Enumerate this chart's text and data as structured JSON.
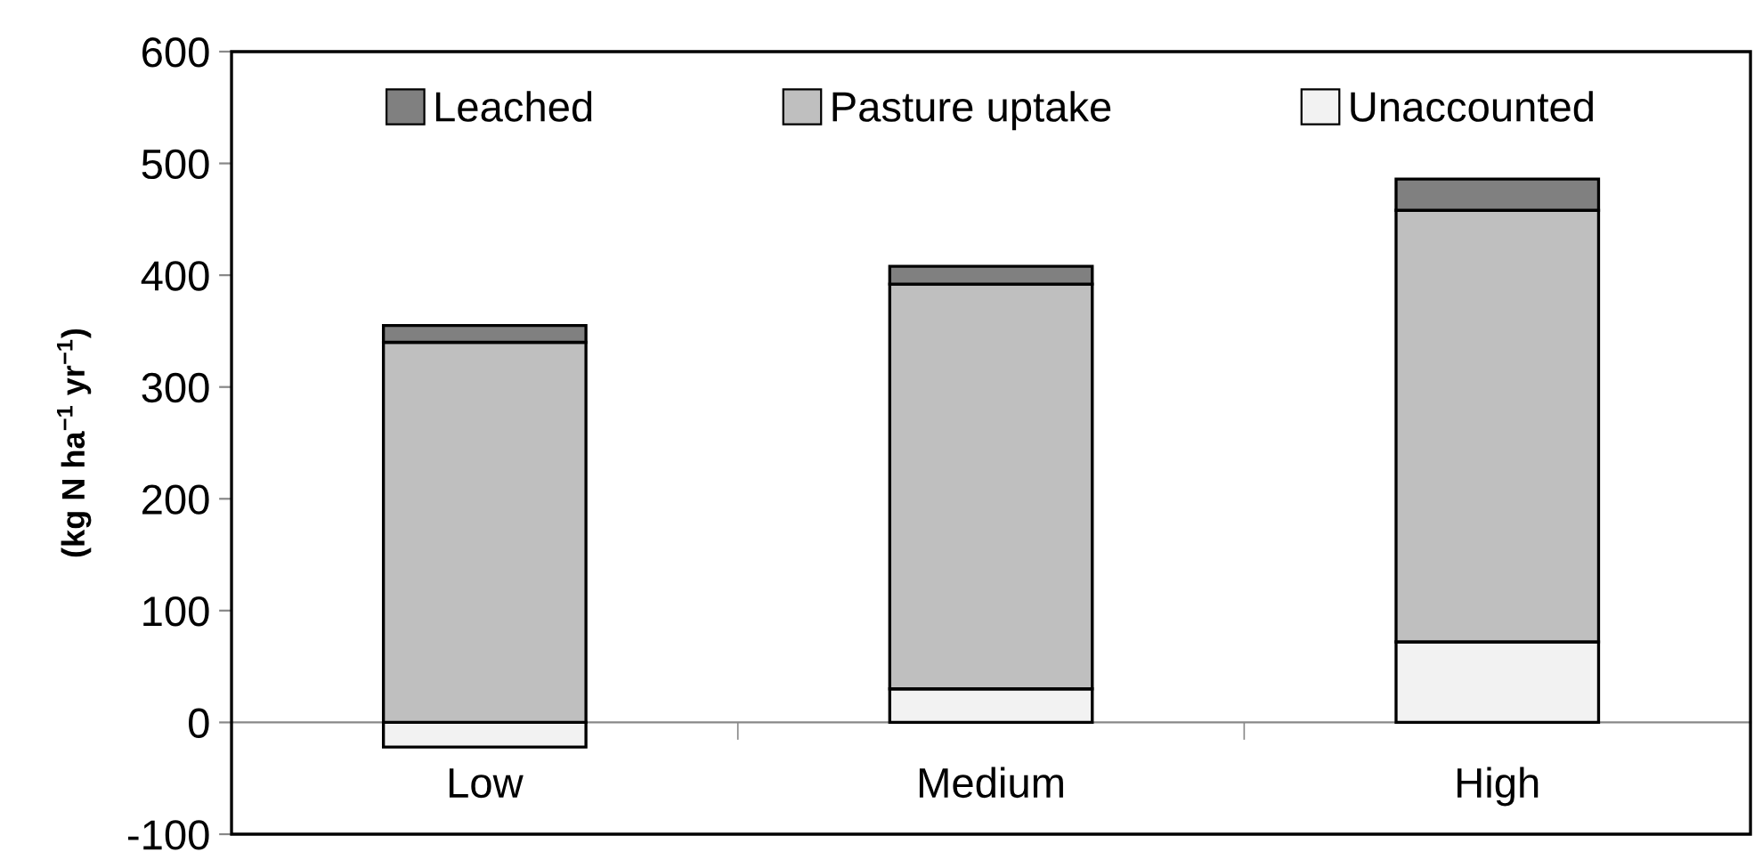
{
  "chart_data": {
    "type": "bar",
    "stacked": true,
    "ylabel": "(kg N ha$^{−1}$ yr$^{−1}$)",
    "categories": [
      "Low",
      "Medium",
      "High"
    ],
    "series": [
      {
        "name": "Unaccounted",
        "color": "#f2f2f2",
        "values": [
          -22,
          30,
          72
        ]
      },
      {
        "name": "Pasture uptake",
        "color": "#bfbfbf",
        "values": [
          340,
          362,
          386
        ]
      },
      {
        "name": "Leached",
        "color": "#808080",
        "values": [
          15,
          16,
          28
        ]
      }
    ],
    "ylim": [
      -100,
      600
    ],
    "yticks": [
      -100,
      0,
      100,
      200,
      300,
      400,
      500,
      600
    ],
    "legend": "top"
  }
}
